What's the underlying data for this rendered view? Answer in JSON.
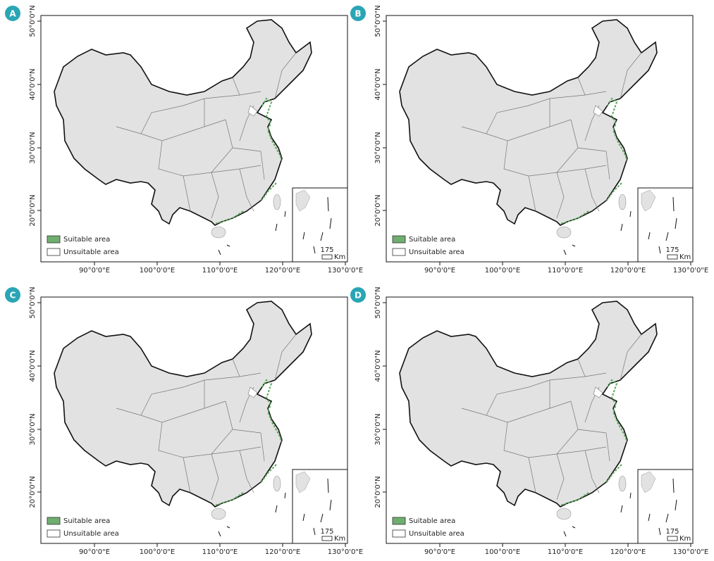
{
  "panels": [
    {
      "label": "A"
    },
    {
      "label": "B"
    },
    {
      "label": "C"
    },
    {
      "label": "D"
    }
  ],
  "lat_ticks": [
    "20°0'0\"N",
    "30°0'0\"N",
    "40°0'0\"N",
    "50°0'0\"N"
  ],
  "lon_ticks": [
    "90°0'0\"E",
    "100°0'0\"E",
    "110°0'0\"E",
    "120°0'0\"E",
    "130°0'0\"E"
  ],
  "legend": [
    "Suitable area",
    "Unsuitable area"
  ],
  "scale": {
    "distance": "175",
    "unit": "Km"
  }
}
